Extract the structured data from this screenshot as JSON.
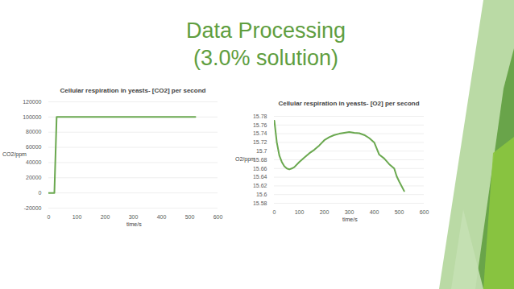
{
  "slide_title": [
    "Data Processing",
    "(3.0% solution)"
  ],
  "chart_data": [
    {
      "type": "line",
      "title": "Cellular respiration in yeasts- [CO2] per second",
      "x_label": "time/s",
      "y_label": "CO2/ppm",
      "x": [
        0,
        10,
        20,
        28,
        50,
        100,
        200,
        300,
        400,
        500,
        520
      ],
      "values": [
        0,
        0,
        0,
        100000,
        100000,
        100000,
        100000,
        100000,
        100000,
        100000,
        100000
      ],
      "color": "#6aa84f",
      "xlim": [
        0,
        600
      ],
      "xticks": [
        0,
        100,
        200,
        300,
        400,
        500,
        600
      ],
      "ylim": [
        -20000,
        120000
      ],
      "yticks": [
        -20000,
        0,
        20000,
        40000,
        60000,
        80000,
        100000,
        120000
      ],
      "grid": true
    },
    {
      "type": "line",
      "title": "Cellular respiration in yeasts- [O2] per second",
      "x_label": "time/s",
      "y_label": "O2/ppm",
      "x": [
        0,
        10,
        20,
        30,
        40,
        50,
        60,
        70,
        80,
        100,
        120,
        140,
        160,
        180,
        200,
        220,
        240,
        260,
        280,
        300,
        320,
        340,
        360,
        380,
        400,
        420,
        440,
        460,
        480,
        490,
        500,
        520
      ],
      "values": [
        15.77,
        15.72,
        15.69,
        15.675,
        15.665,
        15.66,
        15.658,
        15.66,
        15.663,
        15.675,
        15.685,
        15.695,
        15.703,
        15.713,
        15.725,
        15.732,
        15.737,
        15.74,
        15.742,
        15.744,
        15.742,
        15.741,
        15.737,
        15.73,
        15.72,
        15.692,
        15.683,
        15.67,
        15.66,
        15.642,
        15.63,
        15.608
      ],
      "color": "#6aa84f",
      "xlim": [
        0,
        600
      ],
      "xticks": [
        0,
        100,
        200,
        300,
        400,
        500,
        600
      ],
      "ylim": [
        15.58,
        15.78
      ],
      "yticks": [
        15.58,
        15.6,
        15.62,
        15.64,
        15.66,
        15.68,
        15.7,
        15.72,
        15.74,
        15.76,
        15.78
      ],
      "grid": true
    }
  ]
}
